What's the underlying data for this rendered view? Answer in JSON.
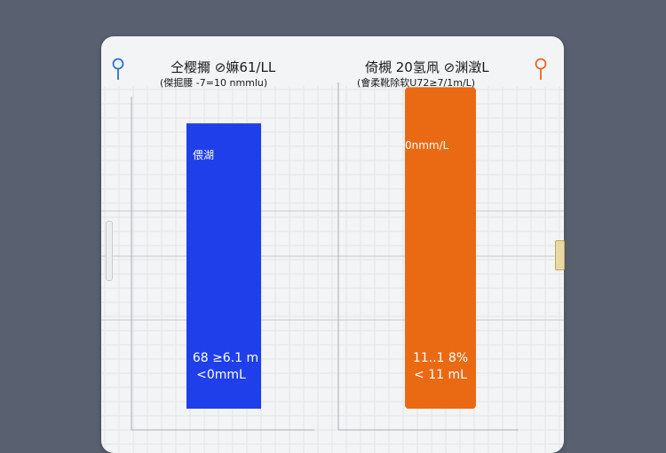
{
  "page_title": "",
  "colors": {
    "blue": "#1f3fea",
    "orange": "#ea6a14",
    "pin_blue": "#2f6fd1",
    "pin_orange": "#e26a2c"
  },
  "icons": {
    "left_pin": "map-pin-icon",
    "right_pin": "map-pin-icon"
  },
  "chart_data": {
    "type": "bar",
    "ylim": [
      0,
      1
    ],
    "grid": true,
    "series": [
      {
        "title": "仝樱擟 ⊘嫲61/LL",
        "subtitle": "(傑掘腰 -7=10 nmmlu)",
        "inner_label": "偎湖",
        "value_text": [
          "68 ≥6.1 m",
          "<0mmL"
        ],
        "value": 0.79,
        "color": "#1f3fea"
      },
      {
        "title": "倚槻 20氢凧 ⊘渊澂L",
        "subtitle": "(會柔靴除软U72≥7/1m/L)",
        "inner_label": "0nmm/L",
        "value_text": [
          "11..1 8%",
          "< 11 mL"
        ],
        "value": 0.89,
        "color": "#ea6a14"
      }
    ]
  }
}
